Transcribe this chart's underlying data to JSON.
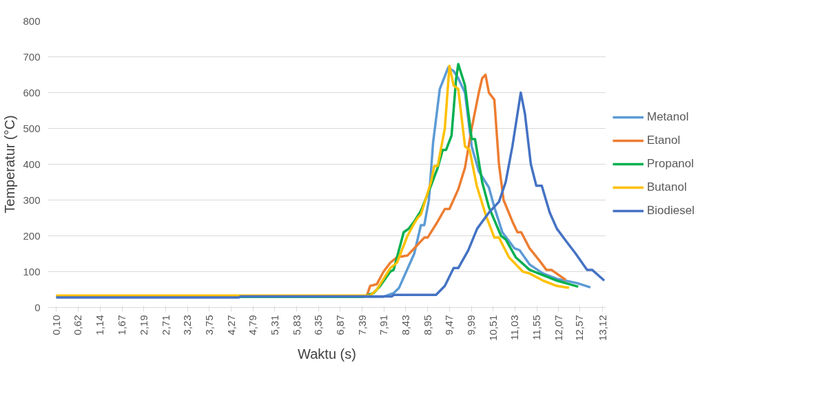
{
  "chart_data": {
    "type": "line",
    "xlabel": "Waktu (s)",
    "ylabel": "Temperatur (°C)",
    "xlim": [
      -0.1,
      13.2
    ],
    "ylim": [
      0,
      800
    ],
    "yticks": [
      0,
      100,
      200,
      300,
      400,
      500,
      600,
      700,
      800
    ],
    "xticks": [
      {
        "value": 0.1,
        "label": "0,10"
      },
      {
        "value": 0.62,
        "label": "0,62"
      },
      {
        "value": 1.14,
        "label": "1,14"
      },
      {
        "value": 1.67,
        "label": "1,67"
      },
      {
        "value": 2.19,
        "label": "2,19"
      },
      {
        "value": 2.71,
        "label": "2,71"
      },
      {
        "value": 3.23,
        "label": "3,23"
      },
      {
        "value": 3.75,
        "label": "3,75"
      },
      {
        "value": 4.27,
        "label": "4,27"
      },
      {
        "value": 4.79,
        "label": "4,79"
      },
      {
        "value": 5.31,
        "label": "5,31"
      },
      {
        "value": 5.83,
        "label": "5,83"
      },
      {
        "value": 6.35,
        "label": "6,35"
      },
      {
        "value": 6.87,
        "label": "6,87"
      },
      {
        "value": 7.39,
        "label": "7,39"
      },
      {
        "value": 7.91,
        "label": "7,91"
      },
      {
        "value": 8.43,
        "label": "8,43"
      },
      {
        "value": 8.95,
        "label": "8,95"
      },
      {
        "value": 9.47,
        "label": "9,47"
      },
      {
        "value": 9.99,
        "label": "9,99"
      },
      {
        "value": 10.51,
        "label": "10,51"
      },
      {
        "value": 11.03,
        "label": "11,03"
      },
      {
        "value": 11.55,
        "label": "11,55"
      },
      {
        "value": 12.07,
        "label": "12,07"
      },
      {
        "value": 12.57,
        "label": "12,57"
      },
      {
        "value": 13.12,
        "label": "13,12"
      }
    ],
    "grid": "y",
    "legend": "right",
    "marker": "none",
    "line_style": "solid",
    "series": [
      {
        "name": "Metanol",
        "color": "#5b9bd5",
        "x": [
          0.1,
          7.9,
          8.14,
          8.27,
          8.63,
          8.79,
          8.87,
          8.98,
          9.08,
          9.24,
          9.44,
          9.57,
          9.68,
          9.84,
          10.0,
          10.17,
          10.41,
          10.54,
          10.73,
          11.02,
          11.14,
          11.38,
          11.7,
          12.03,
          12.51,
          12.83
        ],
        "values": [
          30,
          30,
          40,
          55,
          150,
          230,
          230,
          300,
          460,
          610,
          670,
          660,
          640,
          600,
          450,
          380,
          335,
          280,
          210,
          165,
          160,
          120,
          95,
          80,
          68,
          56
        ]
      },
      {
        "name": "Etanol",
        "color": "#ed7d31",
        "x": [
          0.1,
          7.5,
          7.58,
          7.74,
          7.9,
          8.06,
          8.22,
          8.47,
          8.71,
          8.87,
          8.95,
          9.19,
          9.36,
          9.47,
          9.68,
          9.84,
          10.0,
          10.17,
          10.25,
          10.33,
          10.41,
          10.54,
          10.65,
          10.76,
          10.97,
          11.09,
          11.18,
          11.38,
          11.62,
          11.78,
          11.9,
          12.24
        ],
        "values": [
          32,
          32,
          60,
          65,
          100,
          125,
          140,
          145,
          175,
          195,
          195,
          240,
          275,
          275,
          330,
          390,
          500,
          600,
          640,
          650,
          600,
          580,
          400,
          300,
          240,
          210,
          210,
          165,
          130,
          105,
          105,
          77
        ]
      },
      {
        "name": "Propanol",
        "color": "#00b050",
        "x": [
          0.1,
          7.41,
          7.66,
          7.82,
          8.06,
          8.14,
          8.38,
          8.5,
          8.63,
          8.79,
          9.03,
          9.19,
          9.31,
          9.39,
          9.52,
          9.63,
          9.68,
          9.84,
          10.0,
          10.08,
          10.25,
          10.41,
          10.7,
          10.81,
          11.05,
          11.38,
          11.7,
          12.03,
          12.54
        ],
        "values": [
          30,
          30,
          40,
          60,
          100,
          105,
          210,
          220,
          240,
          270,
          340,
          390,
          440,
          440,
          480,
          640,
          680,
          620,
          470,
          470,
          350,
          280,
          200,
          190,
          140,
          105,
          90,
          75,
          58
        ]
      },
      {
        "name": "Butanol",
        "color": "#ffc000",
        "x": [
          0.1,
          7.58,
          7.74,
          7.9,
          8.06,
          8.22,
          8.47,
          8.63,
          8.71,
          8.79,
          9.03,
          9.11,
          9.19,
          9.36,
          9.47,
          9.57,
          9.68,
          9.84,
          9.95,
          10.12,
          10.33,
          10.54,
          10.65,
          10.89,
          11.22,
          11.38,
          11.7,
          12.03,
          12.32
        ],
        "values": [
          33,
          33,
          50,
          80,
          110,
          125,
          200,
          235,
          250,
          260,
          350,
          395,
          395,
          500,
          675,
          620,
          610,
          450,
          440,
          340,
          260,
          195,
          195,
          140,
          100,
          95,
          75,
          60,
          55
        ]
      },
      {
        "name": "Biodiesel",
        "color": "#4472c4",
        "x": [
          0.1,
          4.45,
          4.5,
          8.1,
          8.14,
          9.15,
          9.36,
          9.57,
          9.68,
          9.92,
          10.13,
          10.41,
          10.65,
          10.81,
          10.97,
          11.09,
          11.17,
          11.27,
          11.41,
          11.54,
          11.67,
          11.86,
          12.03,
          12.22,
          12.48,
          12.75,
          12.87,
          13.16
        ],
        "values": [
          28,
          28,
          31,
          31,
          35,
          35,
          60,
          110,
          110,
          160,
          220,
          265,
          295,
          350,
          450,
          540,
          600,
          540,
          400,
          340,
          340,
          265,
          220,
          190,
          150,
          105,
          105,
          75
        ]
      }
    ]
  }
}
